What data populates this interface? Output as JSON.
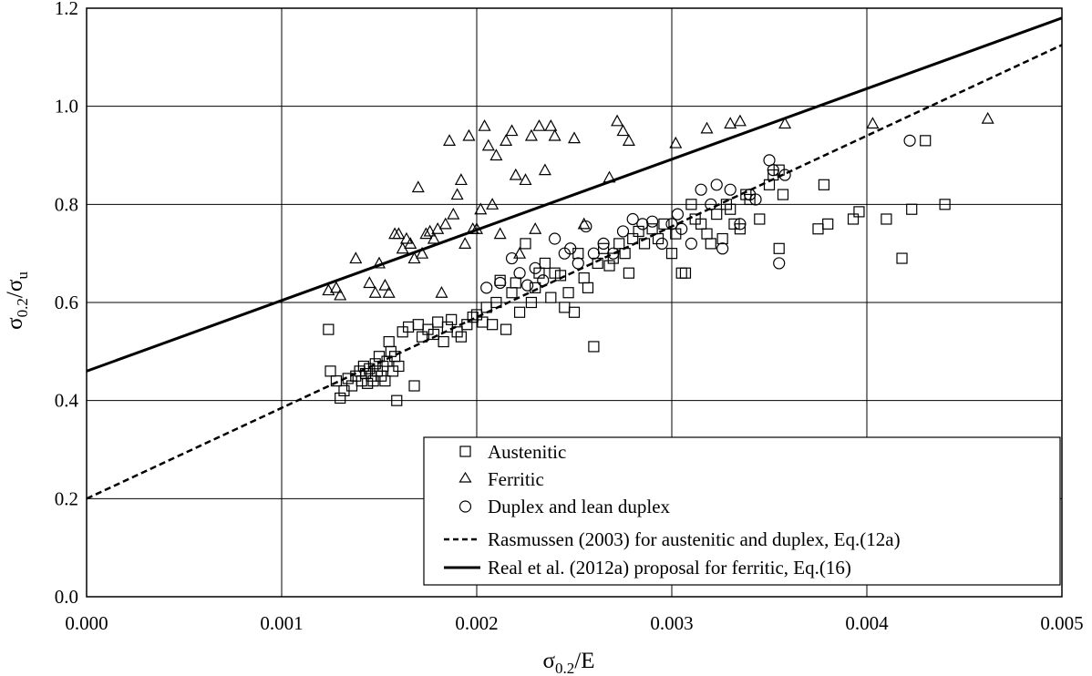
{
  "chart_data": {
    "type": "scatter",
    "xlabel": {
      "base": "σ",
      "sub": "0.2",
      "rest": "/E"
    },
    "ylabel": {
      "base": "σ",
      "sub": "0.2",
      "mid": "/σ",
      "sub2": "u"
    },
    "xlim": [
      0.0,
      0.005
    ],
    "ylim": [
      0.0,
      1.2
    ],
    "x_ticks": [
      "0.000",
      "0.001",
      "0.002",
      "0.003",
      "0.004",
      "0.005"
    ],
    "y_ticks": [
      "0.0",
      "0.2",
      "0.4",
      "0.6",
      "0.8",
      "1.0",
      "1.2"
    ],
    "grid": true,
    "legend_position": "bottom-right",
    "series": [
      {
        "name": "Austenitic",
        "marker": "square",
        "points": [
          [
            0.00124,
            0.545
          ],
          [
            0.00125,
            0.46
          ],
          [
            0.00128,
            0.44
          ],
          [
            0.0013,
            0.405
          ],
          [
            0.00132,
            0.42
          ],
          [
            0.00134,
            0.445
          ],
          [
            0.00136,
            0.43
          ],
          [
            0.00138,
            0.45
          ],
          [
            0.0014,
            0.46
          ],
          [
            0.00141,
            0.44
          ],
          [
            0.00142,
            0.47
          ],
          [
            0.00143,
            0.455
          ],
          [
            0.00144,
            0.435
          ],
          [
            0.00145,
            0.465
          ],
          [
            0.00146,
            0.45
          ],
          [
            0.00147,
            0.44
          ],
          [
            0.00148,
            0.475
          ],
          [
            0.00149,
            0.46
          ],
          [
            0.0015,
            0.49
          ],
          [
            0.00151,
            0.45
          ],
          [
            0.00152,
            0.47
          ],
          [
            0.00153,
            0.44
          ],
          [
            0.00154,
            0.48
          ],
          [
            0.00155,
            0.52
          ],
          [
            0.00156,
            0.5
          ],
          [
            0.00157,
            0.46
          ],
          [
            0.00158,
            0.49
          ],
          [
            0.00159,
            0.4
          ],
          [
            0.0016,
            0.47
          ],
          [
            0.00162,
            0.54
          ],
          [
            0.00165,
            0.55
          ],
          [
            0.00168,
            0.43
          ],
          [
            0.0017,
            0.555
          ],
          [
            0.00172,
            0.53
          ],
          [
            0.00175,
            0.545
          ],
          [
            0.00178,
            0.535
          ],
          [
            0.0018,
            0.56
          ],
          [
            0.00183,
            0.52
          ],
          [
            0.00185,
            0.55
          ],
          [
            0.00187,
            0.565
          ],
          [
            0.0019,
            0.54
          ],
          [
            0.00192,
            0.53
          ],
          [
            0.00195,
            0.555
          ],
          [
            0.00198,
            0.57
          ],
          [
            0.002,
            0.575
          ],
          [
            0.00203,
            0.56
          ],
          [
            0.00205,
            0.59
          ],
          [
            0.00208,
            0.555
          ],
          [
            0.0021,
            0.6
          ],
          [
            0.00212,
            0.645
          ],
          [
            0.00215,
            0.545
          ],
          [
            0.00218,
            0.62
          ],
          [
            0.0022,
            0.64
          ],
          [
            0.00222,
            0.58
          ],
          [
            0.00225,
            0.72
          ],
          [
            0.00228,
            0.6
          ],
          [
            0.0023,
            0.63
          ],
          [
            0.00232,
            0.66
          ],
          [
            0.00235,
            0.68
          ],
          [
            0.00238,
            0.61
          ],
          [
            0.0024,
            0.66
          ],
          [
            0.00243,
            0.655
          ],
          [
            0.00245,
            0.59
          ],
          [
            0.00247,
            0.62
          ],
          [
            0.0025,
            0.58
          ],
          [
            0.00252,
            0.7
          ],
          [
            0.00255,
            0.65
          ],
          [
            0.00257,
            0.63
          ],
          [
            0.0026,
            0.51
          ],
          [
            0.00262,
            0.68
          ],
          [
            0.00265,
            0.71
          ],
          [
            0.00268,
            0.675
          ],
          [
            0.0027,
            0.69
          ],
          [
            0.00273,
            0.72
          ],
          [
            0.00276,
            0.7
          ],
          [
            0.00278,
            0.66
          ],
          [
            0.0028,
            0.73
          ],
          [
            0.00283,
            0.745
          ],
          [
            0.00286,
            0.72
          ],
          [
            0.0029,
            0.75
          ],
          [
            0.00293,
            0.73
          ],
          [
            0.00296,
            0.76
          ],
          [
            0.003,
            0.7
          ],
          [
            0.00302,
            0.74
          ],
          [
            0.00305,
            0.66
          ],
          [
            0.00307,
            0.66
          ],
          [
            0.0031,
            0.8
          ],
          [
            0.00312,
            0.77
          ],
          [
            0.00315,
            0.76
          ],
          [
            0.00318,
            0.74
          ],
          [
            0.0032,
            0.72
          ],
          [
            0.00323,
            0.78
          ],
          [
            0.00326,
            0.73
          ],
          [
            0.00328,
            0.8
          ],
          [
            0.0033,
            0.79
          ],
          [
            0.00332,
            0.76
          ],
          [
            0.00335,
            0.75
          ],
          [
            0.00338,
            0.82
          ],
          [
            0.0034,
            0.81
          ],
          [
            0.00345,
            0.77
          ],
          [
            0.0035,
            0.84
          ],
          [
            0.00352,
            0.86
          ],
          [
            0.00355,
            0.87
          ],
          [
            0.00357,
            0.82
          ],
          [
            0.00355,
            0.71
          ],
          [
            0.00375,
            0.75
          ],
          [
            0.00378,
            0.84
          ],
          [
            0.0038,
            0.76
          ],
          [
            0.00393,
            0.77
          ],
          [
            0.00396,
            0.785
          ],
          [
            0.0041,
            0.77
          ],
          [
            0.00418,
            0.69
          ],
          [
            0.00423,
            0.79
          ],
          [
            0.0043,
            0.93
          ],
          [
            0.0044,
            0.8
          ]
        ]
      },
      {
        "name": "Ferritic",
        "marker": "triangle",
        "points": [
          [
            0.00124,
            0.625
          ],
          [
            0.00128,
            0.63
          ],
          [
            0.0013,
            0.615
          ],
          [
            0.00138,
            0.69
          ],
          [
            0.00145,
            0.64
          ],
          [
            0.00148,
            0.62
          ],
          [
            0.0015,
            0.68
          ],
          [
            0.00153,
            0.635
          ],
          [
            0.00155,
            0.62
          ],
          [
            0.00158,
            0.74
          ],
          [
            0.0016,
            0.74
          ],
          [
            0.00162,
            0.71
          ],
          [
            0.00164,
            0.73
          ],
          [
            0.00166,
            0.72
          ],
          [
            0.00168,
            0.69
          ],
          [
            0.0017,
            0.835
          ],
          [
            0.00172,
            0.7
          ],
          [
            0.00174,
            0.74
          ],
          [
            0.00176,
            0.745
          ],
          [
            0.00178,
            0.73
          ],
          [
            0.0018,
            0.75
          ],
          [
            0.00182,
            0.62
          ],
          [
            0.00184,
            0.76
          ],
          [
            0.00186,
            0.93
          ],
          [
            0.00188,
            0.78
          ],
          [
            0.0019,
            0.82
          ],
          [
            0.00192,
            0.85
          ],
          [
            0.00194,
            0.72
          ],
          [
            0.00196,
            0.94
          ],
          [
            0.00198,
            0.75
          ],
          [
            0.002,
            0.75
          ],
          [
            0.00202,
            0.79
          ],
          [
            0.00204,
            0.96
          ],
          [
            0.00206,
            0.92
          ],
          [
            0.00208,
            0.8
          ],
          [
            0.0021,
            0.9
          ],
          [
            0.00212,
            0.74
          ],
          [
            0.00215,
            0.93
          ],
          [
            0.00218,
            0.95
          ],
          [
            0.0022,
            0.86
          ],
          [
            0.00222,
            0.7
          ],
          [
            0.00225,
            0.85
          ],
          [
            0.00228,
            0.94
          ],
          [
            0.0023,
            0.75
          ],
          [
            0.00232,
            0.96
          ],
          [
            0.00235,
            0.87
          ],
          [
            0.00238,
            0.96
          ],
          [
            0.0024,
            0.94
          ],
          [
            0.0025,
            0.935
          ],
          [
            0.00255,
            0.76
          ],
          [
            0.00268,
            0.855
          ],
          [
            0.00272,
            0.97
          ],
          [
            0.00275,
            0.95
          ],
          [
            0.00278,
            0.93
          ],
          [
            0.00302,
            0.925
          ],
          [
            0.00318,
            0.955
          ],
          [
            0.0033,
            0.965
          ],
          [
            0.00335,
            0.97
          ],
          [
            0.00358,
            0.965
          ],
          [
            0.00403,
            0.965
          ],
          [
            0.00462,
            0.975
          ]
        ]
      },
      {
        "name": "Duplex and lean duplex",
        "marker": "circle",
        "points": [
          [
            0.00205,
            0.63
          ],
          [
            0.00212,
            0.64
          ],
          [
            0.00218,
            0.69
          ],
          [
            0.00222,
            0.66
          ],
          [
            0.00226,
            0.635
          ],
          [
            0.0023,
            0.67
          ],
          [
            0.00234,
            0.645
          ],
          [
            0.0024,
            0.73
          ],
          [
            0.00245,
            0.7
          ],
          [
            0.00248,
            0.71
          ],
          [
            0.00252,
            0.68
          ],
          [
            0.00256,
            0.755
          ],
          [
            0.0026,
            0.7
          ],
          [
            0.00265,
            0.72
          ],
          [
            0.0027,
            0.7
          ],
          [
            0.00275,
            0.745
          ],
          [
            0.0028,
            0.77
          ],
          [
            0.00285,
            0.76
          ],
          [
            0.0029,
            0.765
          ],
          [
            0.00295,
            0.72
          ],
          [
            0.003,
            0.76
          ],
          [
            0.00303,
            0.78
          ],
          [
            0.00305,
            0.75
          ],
          [
            0.0031,
            0.72
          ],
          [
            0.00315,
            0.83
          ],
          [
            0.0032,
            0.8
          ],
          [
            0.00323,
            0.84
          ],
          [
            0.00326,
            0.71
          ],
          [
            0.0033,
            0.83
          ],
          [
            0.00335,
            0.76
          ],
          [
            0.0034,
            0.82
          ],
          [
            0.00343,
            0.81
          ],
          [
            0.0035,
            0.89
          ],
          [
            0.00352,
            0.87
          ],
          [
            0.00355,
            0.68
          ],
          [
            0.00358,
            0.86
          ],
          [
            0.00422,
            0.93
          ]
        ]
      },
      {
        "name": "Rasmussen (2003) for austenitic and duplex, Eq.(12a)",
        "line": "dashed",
        "points": [
          [
            0.0,
            0.2
          ],
          [
            0.005,
            1.125
          ]
        ]
      },
      {
        "name": "Real et al. (2012a) proposal for ferritic, Eq.(16)",
        "line": "solid",
        "points": [
          [
            0.0,
            0.46
          ],
          [
            0.005,
            1.18
          ]
        ]
      }
    ]
  }
}
